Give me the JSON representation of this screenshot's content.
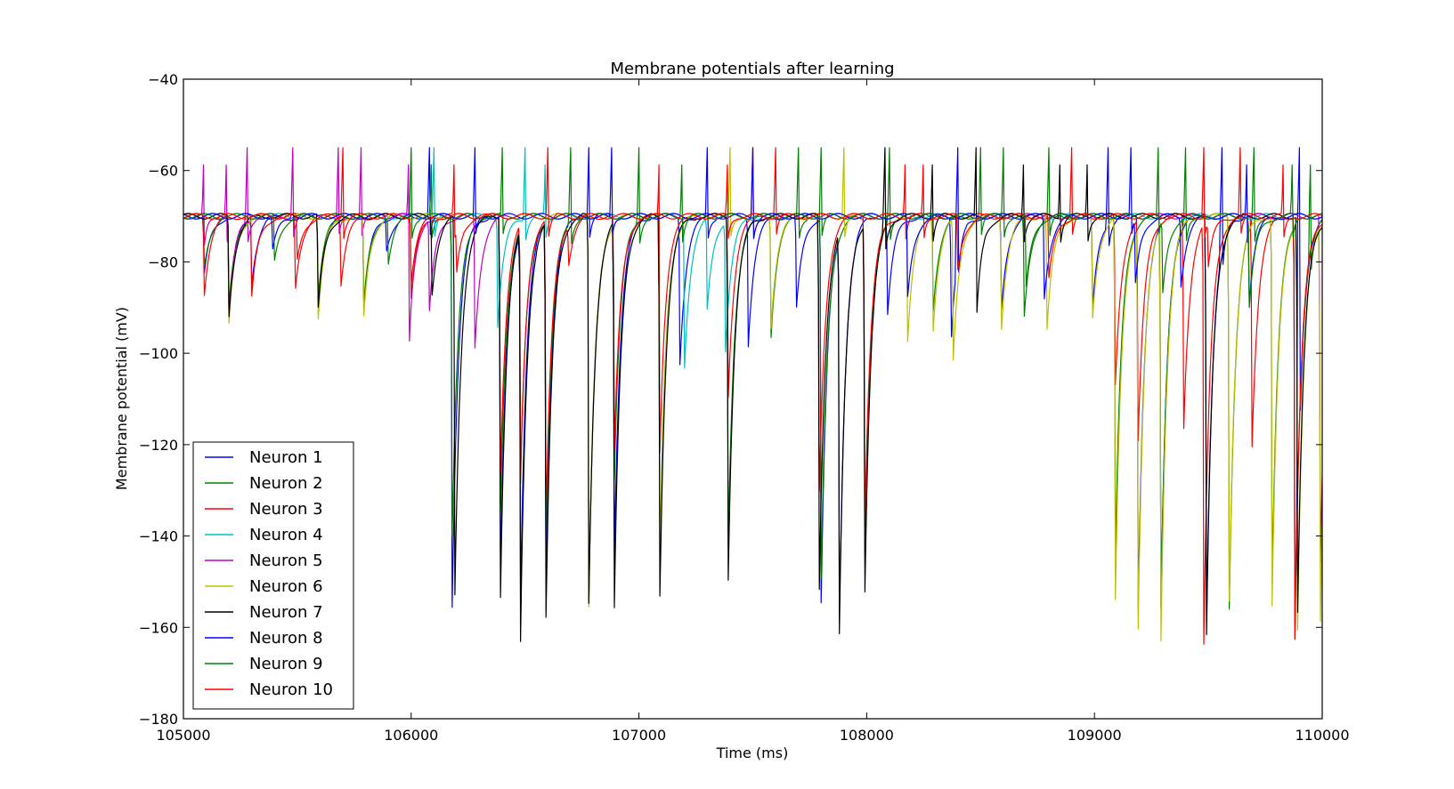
{
  "chart_data": {
    "type": "line",
    "title": "Membrane potentials after learning",
    "xlabel": "Time (ms)",
    "ylabel": "Membrane potential (mV)",
    "xlim": [
      105000,
      110000
    ],
    "ylim": [
      -180,
      -40
    ],
    "xticks": [
      105000,
      106000,
      107000,
      108000,
      109000,
      110000
    ],
    "xtick_labels": [
      "105000",
      "106000",
      "107000",
      "108000",
      "109000",
      "110000"
    ],
    "yticks": [
      -180,
      -160,
      -140,
      -120,
      -100,
      -80,
      -60,
      -40
    ],
    "ytick_labels": [
      "−180",
      "−160",
      "−140",
      "−120",
      "−100",
      "−80",
      "−60",
      "−40"
    ],
    "grid": false,
    "legend_position": "lower-left",
    "resting_potential": -70,
    "spike_peak": -55,
    "series": [
      {
        "name": "Neuron 1",
        "color": "#0000ff",
        "spikes": [
          106080,
          106780,
          107300,
          108400,
          109060,
          109560,
          109900
        ],
        "events": [
          [
            105090,
            -84
          ],
          [
            105200,
            -92
          ],
          [
            105300,
            -84
          ],
          [
            105590,
            -91
          ],
          [
            105790,
            -92
          ],
          [
            106180,
            -155
          ],
          [
            106390,
            -155
          ],
          [
            106480,
            -150
          ],
          [
            106590,
            -152
          ],
          [
            106890,
            -150
          ],
          [
            107180,
            -102
          ],
          [
            107480,
            -98
          ],
          [
            107690,
            -92
          ],
          [
            107800,
            -154
          ],
          [
            107880,
            -154
          ],
          [
            108090,
            -93
          ],
          [
            108370,
            -98
          ],
          [
            108590,
            -92
          ],
          [
            108990,
            -92
          ],
          [
            109190,
            -162
          ],
          [
            109290,
            -160
          ],
          [
            109490,
            -165
          ],
          [
            109880,
            -160
          ]
        ]
      },
      {
        "name": "Neuron 2",
        "color": "#008000",
        "spikes": [
          106090,
          106700,
          107000,
          107700,
          108100,
          108500,
          108800,
          109400,
          109700,
          109950
        ],
        "events": [
          [
            105090,
            -82
          ],
          [
            105200,
            -90
          ],
          [
            105590,
            -89
          ],
          [
            105790,
            -91
          ],
          [
            106180,
            -140
          ],
          [
            106390,
            -140
          ],
          [
            106480,
            -126
          ],
          [
            106590,
            -145
          ],
          [
            106780,
            -155
          ],
          [
            106890,
            -130
          ],
          [
            107090,
            -150
          ],
          [
            107390,
            -148
          ],
          [
            107580,
            -96
          ],
          [
            107800,
            -150
          ],
          [
            107990,
            -150
          ],
          [
            108290,
            -92
          ],
          [
            108690,
            -94
          ],
          [
            109090,
            -150
          ],
          [
            109290,
            -162
          ],
          [
            109590,
            -162
          ],
          [
            109780,
            -150
          ],
          [
            109880,
            -160
          ]
        ]
      },
      {
        "name": "Neuron 3",
        "color": "#ff0000",
        "spikes": [
          106190,
          107090,
          107500,
          107600,
          108170,
          108900,
          109640
        ],
        "events": [
          [
            105090,
            -88
          ],
          [
            105300,
            -88
          ],
          [
            105490,
            -87
          ],
          [
            105690,
            -86
          ],
          [
            106000,
            -88
          ],
          [
            106200,
            -80
          ],
          [
            106390,
            -130
          ],
          [
            106480,
            -125
          ],
          [
            106590,
            -140
          ],
          [
            106690,
            -79
          ],
          [
            106890,
            -126
          ],
          [
            107090,
            -120
          ],
          [
            107390,
            -112
          ],
          [
            107790,
            -135
          ],
          [
            107990,
            -142
          ],
          [
            109090,
            -110
          ],
          [
            109190,
            -122
          ],
          [
            109390,
            -120
          ],
          [
            109480,
            -162
          ],
          [
            109690,
            -124
          ],
          [
            109880,
            -162
          ]
        ]
      },
      {
        "name": "Neuron 4",
        "color": "#00bfbf",
        "spikes": [
          106100,
          106500,
          106590
        ],
        "events": [
          [
            106380,
            -94
          ],
          [
            107200,
            -103
          ],
          [
            107300,
            -90
          ],
          [
            107380,
            -98
          ]
        ]
      },
      {
        "name": "Neuron 5",
        "color": "#bf00bf",
        "spikes": [
          105090,
          105190,
          105280,
          105480,
          105680,
          105780,
          105990
        ],
        "events": [
          [
            105090,
            -72
          ],
          [
            105200,
            -90
          ],
          [
            105990,
            -94
          ],
          [
            106080,
            -90
          ],
          [
            106280,
            -99
          ],
          [
            109990,
            -152
          ]
        ]
      },
      {
        "name": "Neuron 6",
        "color": "#bfbf00",
        "spikes": [
          107400,
          107900
        ],
        "events": [
          [
            105200,
            -94
          ],
          [
            105590,
            -94
          ],
          [
            105790,
            -94
          ],
          [
            106780,
            -156
          ],
          [
            107090,
            -152
          ],
          [
            107580,
            -94
          ],
          [
            108180,
            -97
          ],
          [
            108290,
            -96
          ],
          [
            108380,
            -101
          ],
          [
            108590,
            -96
          ],
          [
            108790,
            -97
          ],
          [
            108990,
            -94
          ],
          [
            109090,
            -160
          ],
          [
            109190,
            -164
          ],
          [
            109290,
            -167
          ],
          [
            109590,
            -160
          ],
          [
            109780,
            -155
          ],
          [
            109890,
            -165
          ],
          [
            109990,
            -163
          ]
        ]
      },
      {
        "name": "Neuron 7",
        "color": "#000000",
        "spikes": [
          108080,
          108290,
          108480,
          108690,
          108850,
          108970
        ],
        "events": [
          [
            105200,
            -92
          ],
          [
            105590,
            -92
          ],
          [
            106090,
            -88
          ],
          [
            106190,
            -159
          ],
          [
            106390,
            -159
          ],
          [
            106480,
            -160
          ],
          [
            106590,
            -163
          ],
          [
            106780,
            -155
          ],
          [
            106890,
            -161
          ],
          [
            107090,
            -159
          ],
          [
            107390,
            -155
          ],
          [
            107790,
            -158
          ],
          [
            107880,
            -158
          ],
          [
            107990,
            -156
          ],
          [
            108480,
            -90
          ],
          [
            109490,
            -169
          ],
          [
            109890,
            -163
          ]
        ]
      },
      {
        "name": "Neuron 8",
        "color": "#0000ff",
        "spikes": [
          106280,
          106880,
          107500,
          109160,
          109670
        ],
        "events": [
          [
            105390,
            -78
          ],
          [
            105890,
            -78
          ],
          [
            108180,
            -88
          ],
          [
            108780,
            -88
          ],
          [
            109180,
            -84
          ],
          [
            109380,
            -85
          ],
          [
            109680,
            -86
          ]
        ]
      },
      {
        "name": "Neuron 9",
        "color": "#008000",
        "spikes": [
          106000,
          106400,
          107190,
          107800,
          108600,
          109280,
          109870
        ],
        "events": [
          [
            105400,
            -80
          ],
          [
            105900,
            -80
          ],
          [
            108700,
            -86
          ],
          [
            109300,
            -86
          ],
          [
            109680,
            -90
          ]
        ]
      },
      {
        "name": "Neuron 10",
        "color": "#ff0000",
        "spikes": [
          105700,
          106600,
          107390,
          108250,
          109480,
          109830
        ],
        "events": [
          [
            105500,
            -80
          ],
          [
            106000,
            -84
          ],
          [
            108400,
            -82
          ],
          [
            108800,
            -84
          ],
          [
            109500,
            -80
          ]
        ]
      }
    ]
  }
}
